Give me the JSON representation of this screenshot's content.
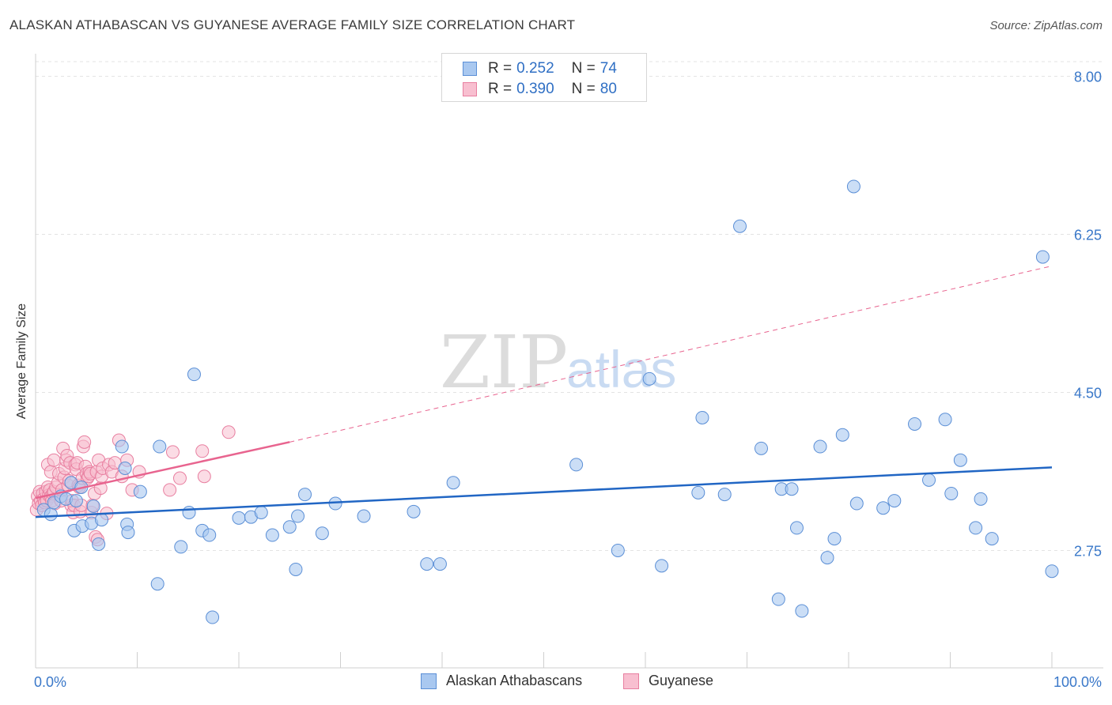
{
  "header": {
    "title": "ALASKAN ATHABASCAN VS GUYANESE AVERAGE FAMILY SIZE CORRELATION CHART",
    "source": "Source: ZipAtlas.com"
  },
  "legend": {
    "rows": [
      {
        "r_label": "R =",
        "r_value": "0.252",
        "n_label": "N =",
        "n_value": "74"
      },
      {
        "r_label": "R =",
        "r_value": "0.390",
        "n_label": "N =",
        "n_value": "80"
      }
    ]
  },
  "bottom_legend": [
    "Alaskan Athabascans",
    "Guyanese"
  ],
  "watermark": {
    "zip": "ZIP",
    "atlas": "atlas"
  },
  "colors": {
    "blue_fill": "#a9c8f0",
    "blue_stroke": "#5b8fd6",
    "blue_line": "#2166c4",
    "pink_fill": "#f8bfd0",
    "pink_stroke": "#e87fa0",
    "pink_line": "#e8648f",
    "tick_label": "#3a78c9",
    "grid": "#e3e3e3"
  },
  "chart_data": {
    "type": "scatter",
    "title": "ALASKAN ATHABASCAN VS GUYANESE AVERAGE FAMILY SIZE CORRELATION CHART",
    "xlabel": "",
    "ylabel": "Average Family Size",
    "xlim": [
      0,
      100
    ],
    "ylim": [
      1.45,
      8.25
    ],
    "x_tick_labels": [
      "0.0%",
      "100.0%"
    ],
    "y_ticks": [
      2.75,
      4.5,
      6.25,
      8.0
    ],
    "y_tick_labels": [
      "2.75",
      "4.50",
      "6.25",
      "8.00"
    ],
    "grid": true,
    "legend_position": "top-center",
    "series": [
      {
        "name": "Alaskan Athabascans",
        "r": 0.252,
        "n": 74,
        "trend": {
          "x": [
            0,
            100
          ],
          "y": [
            3.12,
            3.67
          ]
        },
        "points": [
          [
            0.8,
            3.2
          ],
          [
            1.5,
            3.15
          ],
          [
            1.8,
            3.28
          ],
          [
            2.5,
            3.35
          ],
          [
            3,
            3.32
          ],
          [
            3.5,
            3.5
          ],
          [
            4,
            3.3
          ],
          [
            4.5,
            3.45
          ],
          [
            3.8,
            2.97
          ],
          [
            4.6,
            3.02
          ],
          [
            5.5,
            3.05
          ],
          [
            6.2,
            2.82
          ],
          [
            5.7,
            3.24
          ],
          [
            6.5,
            3.09
          ],
          [
            8.5,
            3.9
          ],
          [
            8.8,
            3.66
          ],
          [
            9,
            3.04
          ],
          [
            9.1,
            2.95
          ],
          [
            10.3,
            3.4
          ],
          [
            12,
            2.38
          ],
          [
            12.2,
            3.9
          ],
          [
            14.3,
            2.79
          ],
          [
            15.1,
            3.17
          ],
          [
            15.6,
            4.7
          ],
          [
            16.4,
            2.97
          ],
          [
            17.1,
            2.92
          ],
          [
            17.4,
            2.01
          ],
          [
            20,
            3.11
          ],
          [
            21.2,
            3.12
          ],
          [
            22.2,
            3.17
          ],
          [
            23.3,
            2.92
          ],
          [
            25,
            3.01
          ],
          [
            25.8,
            3.13
          ],
          [
            25.6,
            2.54
          ],
          [
            26.5,
            3.37
          ],
          [
            28.2,
            2.94
          ],
          [
            29.5,
            3.27
          ],
          [
            32.3,
            3.13
          ],
          [
            37.2,
            3.18
          ],
          [
            38.5,
            2.6
          ],
          [
            39.8,
            2.6
          ],
          [
            41.1,
            3.5
          ],
          [
            53.2,
            3.7
          ],
          [
            57.3,
            2.75
          ],
          [
            60.4,
            4.65
          ],
          [
            61.6,
            2.58
          ],
          [
            65.2,
            3.39
          ],
          [
            65.6,
            4.22
          ],
          [
            67.8,
            3.37
          ],
          [
            69.3,
            6.34
          ],
          [
            71.4,
            3.88
          ],
          [
            73.1,
            2.21
          ],
          [
            73.4,
            3.43
          ],
          [
            74.4,
            3.43
          ],
          [
            74.9,
            3
          ],
          [
            75.4,
            2.08
          ],
          [
            77.2,
            3.9
          ],
          [
            77.9,
            2.67
          ],
          [
            78.6,
            2.88
          ],
          [
            79.4,
            4.03
          ],
          [
            80.5,
            6.78
          ],
          [
            80.8,
            3.27
          ],
          [
            83.4,
            3.22
          ],
          [
            84.5,
            3.3
          ],
          [
            86.5,
            4.15
          ],
          [
            87.9,
            3.53
          ],
          [
            89.5,
            4.2
          ],
          [
            90.1,
            3.38
          ],
          [
            91,
            3.75
          ],
          [
            92.5,
            3.0
          ],
          [
            93,
            3.32
          ],
          [
            94.1,
            2.88
          ],
          [
            99.1,
            6.0
          ],
          [
            100,
            2.52
          ]
        ]
      },
      {
        "name": "Guyanese",
        "r": 0.39,
        "n": 80,
        "trend": {
          "x": [
            0,
            25
          ],
          "y": [
            3.33,
            3.95
          ],
          "dashed_to": {
            "x": 100,
            "y": 5.9
          }
        },
        "points": [
          [
            0.1,
            3.2
          ],
          [
            0.2,
            3.35
          ],
          [
            0.3,
            3.27
          ],
          [
            0.4,
            3.4
          ],
          [
            0.5,
            3.3
          ],
          [
            0.6,
            3.25
          ],
          [
            0.7,
            3.38
          ],
          [
            0.8,
            3.32
          ],
          [
            0.9,
            3.28
          ],
          [
            1,
            3.4
          ],
          [
            1.1,
            3.3
          ],
          [
            1.2,
            3.45
          ],
          [
            1.3,
            3.36
          ],
          [
            1.4,
            3.42
          ],
          [
            1.5,
            3.35
          ],
          [
            1.6,
            3.3
          ],
          [
            1.7,
            3.38
          ],
          [
            1.8,
            3.4
          ],
          [
            1.9,
            3.27
          ],
          [
            2,
            3.45
          ],
          [
            1.2,
            3.7
          ],
          [
            1.5,
            3.62
          ],
          [
            1.8,
            3.75
          ],
          [
            2.2,
            3.5
          ],
          [
            2.3,
            3.6
          ],
          [
            2.5,
            3.3
          ],
          [
            2.6,
            3.42
          ],
          [
            2.7,
            3.88
          ],
          [
            2.8,
            3.56
          ],
          [
            2.9,
            3.66
          ],
          [
            3,
            3.75
          ],
          [
            3.1,
            3.8
          ],
          [
            3.2,
            3.47
          ],
          [
            3.3,
            3.52
          ],
          [
            3.4,
            3.72
          ],
          [
            3.5,
            3.25
          ],
          [
            3.6,
            3.3
          ],
          [
            3.7,
            3.17
          ],
          [
            3.8,
            3.25
          ],
          [
            3.9,
            3.7
          ],
          [
            4,
            3.65
          ],
          [
            4.1,
            3.72
          ],
          [
            4.2,
            3.47
          ],
          [
            4.3,
            3.45
          ],
          [
            4.4,
            3.18
          ],
          [
            4.5,
            3.25
          ],
          [
            4.6,
            3.55
          ],
          [
            4.7,
            3.9
          ],
          [
            4.8,
            3.95
          ],
          [
            4.9,
            3.68
          ],
          [
            5,
            3.6
          ],
          [
            5.1,
            3.55
          ],
          [
            5.2,
            3.57
          ],
          [
            5.3,
            3.62
          ],
          [
            5.4,
            3.6
          ],
          [
            5.5,
            3.17
          ],
          [
            5.6,
            3.25
          ],
          [
            5.8,
            3.38
          ],
          [
            5.9,
            2.9
          ],
          [
            6,
            3.62
          ],
          [
            6.1,
            2.87
          ],
          [
            6.2,
            3.75
          ],
          [
            6.4,
            3.44
          ],
          [
            6.5,
            3.57
          ],
          [
            6.6,
            3.66
          ],
          [
            7,
            3.16
          ],
          [
            7.2,
            3.7
          ],
          [
            7.5,
            3.62
          ],
          [
            7.8,
            3.72
          ],
          [
            8.2,
            3.97
          ],
          [
            8.5,
            3.57
          ],
          [
            9,
            3.75
          ],
          [
            9.5,
            3.42
          ],
          [
            10.2,
            3.62
          ],
          [
            13.2,
            3.42
          ],
          [
            13.5,
            3.84
          ],
          [
            14.2,
            3.55
          ],
          [
            16.4,
            3.85
          ],
          [
            16.6,
            3.57
          ],
          [
            19,
            4.06
          ]
        ]
      }
    ]
  }
}
